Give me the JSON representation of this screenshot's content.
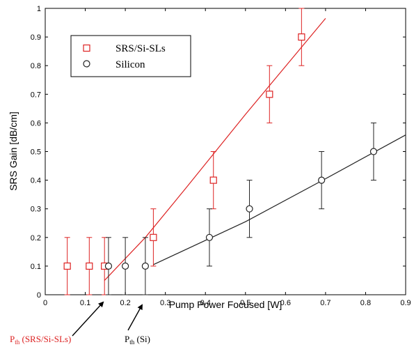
{
  "chart_data": {
    "type": "scatter",
    "xlabel": "Pump Power Focused [W]",
    "ylabel": "SRS Gain [dB/cm]",
    "xlim": [
      0,
      0.9
    ],
    "ylim": [
      0,
      1
    ],
    "xticks": [
      "0",
      "0.1",
      "0.2",
      "0.3",
      "0.4",
      "0.5",
      "0.6",
      "0.7",
      "0.8",
      "0.9"
    ],
    "yticks": [
      "0",
      "0.1",
      "0.2",
      "0.3",
      "0.4",
      "0.5",
      "0.6",
      "0.7",
      "0.8",
      "0.9",
      "1"
    ],
    "grid": false,
    "legend_position": "top-left",
    "series": [
      {
        "name": "SRS/Si-SLs",
        "color": "#dd2222",
        "marker": "square",
        "points": [
          {
            "x": 0.055,
            "y": 0.1,
            "err": 0.1
          },
          {
            "x": 0.11,
            "y": 0.1,
            "err": 0.1
          },
          {
            "x": 0.148,
            "y": 0.1,
            "err": 0.1
          },
          {
            "x": 0.27,
            "y": 0.2,
            "err": 0.1
          },
          {
            "x": 0.42,
            "y": 0.4,
            "err": 0.1
          },
          {
            "x": 0.56,
            "y": 0.7,
            "err": 0.1
          },
          {
            "x": 0.64,
            "y": 0.9,
            "err": 0.1
          }
        ],
        "fit_line": [
          [
            0.148,
            0.05
          ],
          [
            0.25,
            0.2
          ],
          [
            0.35,
            0.37
          ],
          [
            0.5,
            0.63
          ],
          [
            0.7,
            0.965
          ]
        ]
      },
      {
        "name": "Silicon",
        "color": "#222222",
        "marker": "circle",
        "points": [
          {
            "x": 0.158,
            "y": 0.1,
            "err": 0.1
          },
          {
            "x": 0.2,
            "y": 0.1,
            "err": 0.1
          },
          {
            "x": 0.25,
            "y": 0.1,
            "err": 0.1
          },
          {
            "x": 0.41,
            "y": 0.2,
            "err": 0.1
          },
          {
            "x": 0.51,
            "y": 0.3,
            "err": 0.1
          },
          {
            "x": 0.69,
            "y": 0.4,
            "err": 0.1
          },
          {
            "x": 0.82,
            "y": 0.5,
            "err": 0.1
          }
        ],
        "fit_line": [
          [
            0.27,
            0.105
          ],
          [
            0.5,
            0.255
          ],
          [
            0.7,
            0.405
          ],
          [
            0.9,
            0.558
          ]
        ]
      }
    ],
    "annotations": [
      {
        "id": "pth_srs",
        "main": "P",
        "sub": "th",
        "rest": " (SRS/Si-SLs)",
        "color": "#dd2222",
        "target": [
          0.148,
          0
        ]
      },
      {
        "id": "pth_si",
        "main": "P",
        "sub": "th",
        "rest": " (Si)",
        "color": "#000000",
        "target": [
          0.245,
          0
        ]
      }
    ]
  }
}
